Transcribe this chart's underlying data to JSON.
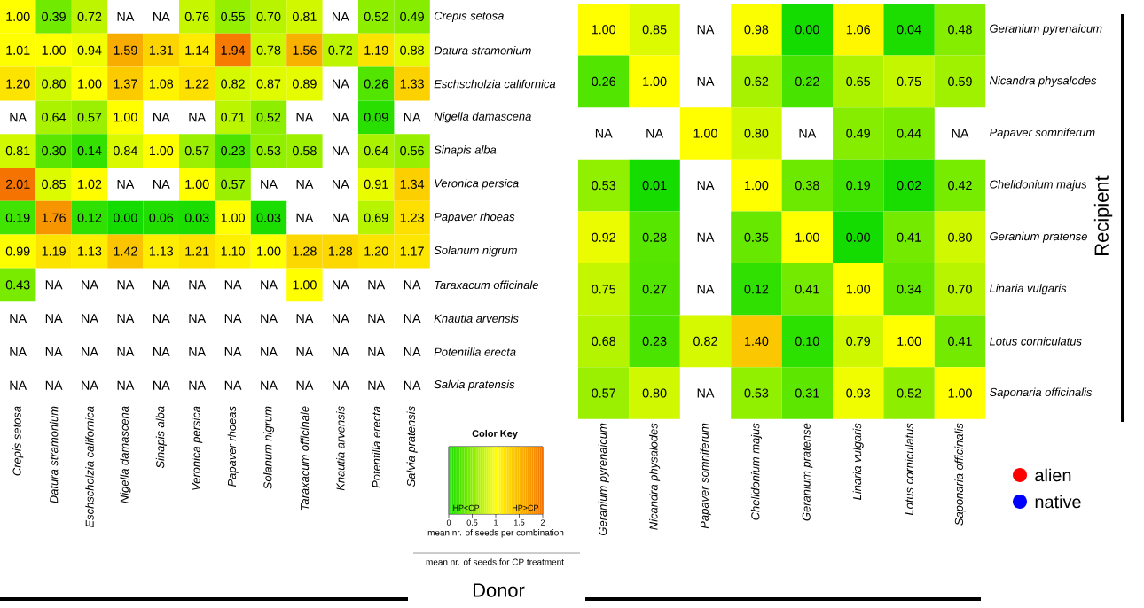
{
  "chart_data": [
    {
      "type": "heatmap",
      "xlabel": "Donor",
      "clabel": "mean nr. of seeds per combination",
      "annotations": [
        "Color Key",
        "HP<CP",
        "HP>CP",
        "mean nr. of seeds for CP treatment"
      ],
      "categories": [
        "Crepis setosa",
        "Datura stramonium",
        "Eschscholzia californica",
        "Nigella damascena",
        "Sinapis alba",
        "Veronica persica",
        "Papaver rhoeas",
        "Solanum nigrum",
        "Taraxacum officinale",
        "Knautia arvensis",
        "Potentilla erecta",
        "Salvia pratensis"
      ],
      "y_categories": [
        "Crepis setosa",
        "Datura stramonium",
        "Eschscholzia californica",
        "Nigella damascena",
        "Sinapis alba",
        "Veronica persica",
        "Papaver rhoeas",
        "Solanum nigrum",
        "Taraxacum officinale",
        "Knautia arvensis",
        "Potentilla erecta",
        "Salvia pratensis"
      ],
      "cells": [
        [
          1.0,
          0.39,
          0.72,
          null,
          null,
          0.76,
          0.55,
          0.7,
          0.81,
          null,
          0.52,
          0.49
        ],
        [
          1.01,
          1.0,
          0.94,
          1.59,
          1.31,
          1.14,
          1.94,
          0.78,
          1.56,
          0.72,
          1.19,
          0.88
        ],
        [
          1.2,
          0.8,
          1.0,
          1.37,
          1.08,
          1.22,
          0.82,
          0.87,
          0.89,
          null,
          0.26,
          1.33
        ],
        [
          null,
          0.64,
          0.57,
          1.0,
          null,
          null,
          0.71,
          0.52,
          null,
          null,
          0.09,
          null
        ],
        [
          0.81,
          0.3,
          0.14,
          0.84,
          1.0,
          0.57,
          0.23,
          0.53,
          0.58,
          null,
          0.64,
          0.56
        ],
        [
          2.01,
          0.85,
          1.02,
          null,
          null,
          1.0,
          0.57,
          null,
          null,
          null,
          0.91,
          1.34
        ],
        [
          0.19,
          1.76,
          0.12,
          0.0,
          0.06,
          0.03,
          1.0,
          0.03,
          null,
          null,
          0.69,
          1.23
        ],
        [
          0.99,
          1.19,
          1.13,
          1.42,
          1.13,
          1.21,
          1.1,
          1.0,
          1.28,
          1.28,
          1.2,
          1.17
        ],
        [
          0.43,
          null,
          null,
          null,
          null,
          null,
          null,
          null,
          1.0,
          null,
          null,
          null
        ],
        [
          null,
          null,
          null,
          null,
          null,
          null,
          null,
          null,
          null,
          null,
          null,
          null
        ],
        [
          null,
          null,
          null,
          null,
          null,
          null,
          null,
          null,
          null,
          null,
          null,
          null
        ],
        [
          null,
          null,
          null,
          null,
          null,
          null,
          null,
          null,
          null,
          null,
          null,
          null
        ]
      ],
      "cell_labels": [
        [
          "1.00",
          "0.39",
          "0.72",
          "NA",
          "NA",
          "0.76",
          "0.55",
          "0.70",
          "0.81",
          "NA",
          "0.52",
          "0.49"
        ],
        [
          "1.01",
          "1.00",
          "0.94",
          "1.59",
          "1.31",
          "1.14",
          "1.94",
          "0.78",
          "1.56",
          "0.72",
          "1.19",
          "0.88"
        ],
        [
          "1.20",
          "0.80",
          "1.00",
          "1.37",
          "1.08",
          "1.22",
          "0.82",
          "0.87",
          "0.89",
          "NA",
          "0.26",
          "1.33"
        ],
        [
          "NA",
          "0.64",
          "0.57",
          "1.00",
          "NA",
          "NA",
          "0.71",
          "0.52",
          "NA",
          "NA",
          "0.09",
          "NA"
        ],
        [
          "0.81",
          "0.30",
          "0.14",
          "0.84",
          "1.00",
          "0.57",
          "0.23",
          "0.53",
          "0.58",
          "NA",
          "0.64",
          "0.56"
        ],
        [
          "2.01",
          "0.85",
          "1.02",
          "NA",
          "NA",
          "1.00",
          "0.57",
          "NA",
          "NA",
          "NA",
          "0.91",
          "1.34"
        ],
        [
          "0.19",
          "1.76",
          "0.12",
          "0.00",
          "0.06",
          "0.03",
          "1.00",
          "0.03",
          "NA",
          "NA",
          "0.69",
          "1.23"
        ],
        [
          "0.99",
          "1.19",
          "1.13",
          "1.42",
          "1.13",
          "1.21",
          "1.10",
          "1.00",
          "1.28",
          "1.28",
          "1.20",
          "1.17"
        ],
        [
          "0.43",
          "NA",
          "NA",
          "NA",
          "NA",
          "NA",
          "NA",
          "NA",
          "1.00",
          "NA",
          "NA",
          "NA"
        ],
        [
          "NA",
          "NA",
          "NA",
          "NA",
          "NA",
          "NA",
          "NA",
          "NA",
          "NA",
          "NA",
          "NA",
          "NA"
        ],
        [
          "NA",
          "NA",
          "NA",
          "NA",
          "NA",
          "NA",
          "NA",
          "NA",
          "NA",
          "NA",
          "NA",
          "NA"
        ],
        [
          "NA",
          "NA",
          "NA",
          "NA",
          "NA",
          "NA",
          "NA",
          "NA",
          "NA",
          "NA",
          "NA",
          "NA"
        ]
      ],
      "clim": [
        0,
        2
      ],
      "cticks": [
        0,
        0.5,
        1,
        1.5,
        2
      ]
    },
    {
      "type": "heatmap",
      "ylabel": "Recipient",
      "annotations": [
        "alien",
        "native"
      ],
      "categories": [
        "Geranium pyrenaicum",
        "Nicandra physalodes",
        "Papaver somniferum",
        "Chelidonium majus",
        "Geranium pratense",
        "Linaria vulgaris",
        "Lotus corniculatus",
        "Saponaria officinalis"
      ],
      "y_categories": [
        "Geranium pyrenaicum",
        "Nicandra physalodes",
        "Papaver somniferum",
        "Chelidonium majus",
        "Geranium pratense",
        "Linaria vulgaris",
        "Lotus corniculatus",
        "Saponaria officinalis"
      ],
      "cells": [
        [
          1.0,
          0.85,
          null,
          0.98,
          0.0,
          1.06,
          0.04,
          0.48
        ],
        [
          0.26,
          1.0,
          null,
          0.62,
          0.22,
          0.65,
          0.75,
          0.59
        ],
        [
          null,
          null,
          1.0,
          0.8,
          null,
          0.49,
          0.44,
          null
        ],
        [
          0.53,
          0.01,
          null,
          1.0,
          0.38,
          0.19,
          0.02,
          0.42
        ],
        [
          0.92,
          0.28,
          null,
          0.35,
          1.0,
          0.0,
          0.41,
          0.8
        ],
        [
          0.75,
          0.27,
          null,
          0.12,
          0.41,
          1.0,
          0.34,
          0.7
        ],
        [
          0.68,
          0.23,
          0.82,
          1.4,
          0.1,
          0.79,
          1.0,
          0.41
        ],
        [
          0.57,
          0.8,
          null,
          0.53,
          0.31,
          0.93,
          0.52,
          1.0
        ]
      ],
      "cell_labels": [
        [
          "1.00",
          "0.85",
          "NA",
          "0.98",
          "0.00",
          "1.06",
          "0.04",
          "0.48"
        ],
        [
          "0.26",
          "1.00",
          "NA",
          "0.62",
          "0.22",
          "0.65",
          "0.75",
          "0.59"
        ],
        [
          "NA",
          "NA",
          "1.00",
          "0.80",
          "NA",
          "0.49",
          "0.44",
          "NA"
        ],
        [
          "0.53",
          "0.01",
          "NA",
          "1.00",
          "0.38",
          "0.19",
          "0.02",
          "0.42"
        ],
        [
          "0.92",
          "0.28",
          "NA",
          "0.35",
          "1.00",
          "0.00",
          "0.41",
          "0.80"
        ],
        [
          "0.75",
          "0.27",
          "NA",
          "0.12",
          "0.41",
          "1.00",
          "0.34",
          "0.70"
        ],
        [
          "0.68",
          "0.23",
          "0.82",
          "1.40",
          "0.10",
          "0.79",
          "1.00",
          "0.41"
        ],
        [
          "0.57",
          "0.80",
          "NA",
          "0.53",
          "0.31",
          "0.93",
          "0.52",
          "1.00"
        ]
      ]
    }
  ]
}
